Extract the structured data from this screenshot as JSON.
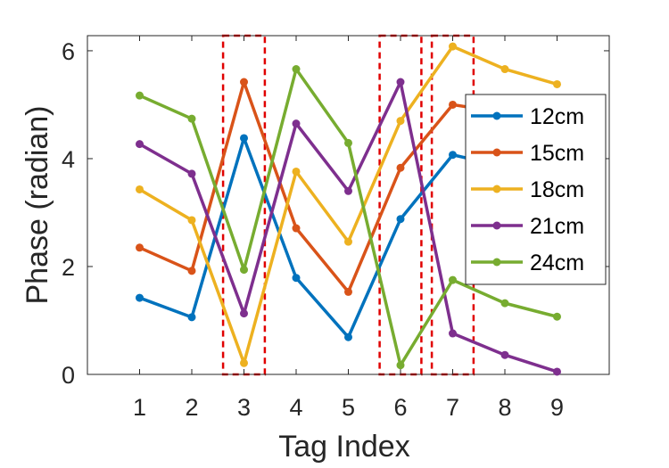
{
  "chart_data": {
    "type": "line",
    "title": "",
    "xlabel": "Tag Index",
    "ylabel": "Phase (radian)",
    "x": [
      1,
      2,
      3,
      4,
      5,
      6,
      7,
      8,
      9
    ],
    "xlim": [
      0,
      10
    ],
    "ylim": [
      0,
      6.28
    ],
    "xticks": [
      1,
      2,
      3,
      4,
      5,
      6,
      7,
      8,
      9
    ],
    "yticks": [
      0,
      2,
      4,
      6
    ],
    "grid": false,
    "legend_position": "right",
    "series": [
      {
        "name": "12cm",
        "color": "#0072BD",
        "values": [
          1.42,
          1.06,
          4.38,
          1.79,
          0.69,
          2.88,
          4.07,
          3.85,
          3.7
        ]
      },
      {
        "name": "15cm",
        "color": "#D95319",
        "values": [
          2.35,
          1.92,
          5.42,
          2.71,
          1.53,
          3.83,
          5.0,
          4.85,
          4.7
        ]
      },
      {
        "name": "18cm",
        "color": "#EDB120",
        "values": [
          3.43,
          2.86,
          0.21,
          3.76,
          2.46,
          4.7,
          6.08,
          5.66,
          5.38
        ]
      },
      {
        "name": "21cm",
        "color": "#7E2F8E",
        "values": [
          4.27,
          3.72,
          1.13,
          4.65,
          3.4,
          5.42,
          0.76,
          0.36,
          0.05
        ]
      },
      {
        "name": "24cm",
        "color": "#77AC30",
        "values": [
          5.17,
          4.74,
          1.94,
          5.66,
          4.29,
          0.17,
          1.75,
          1.32,
          1.07
        ]
      }
    ],
    "highlighted_tags": [
      3,
      6,
      7
    ],
    "highlight_color": "#E00000"
  }
}
